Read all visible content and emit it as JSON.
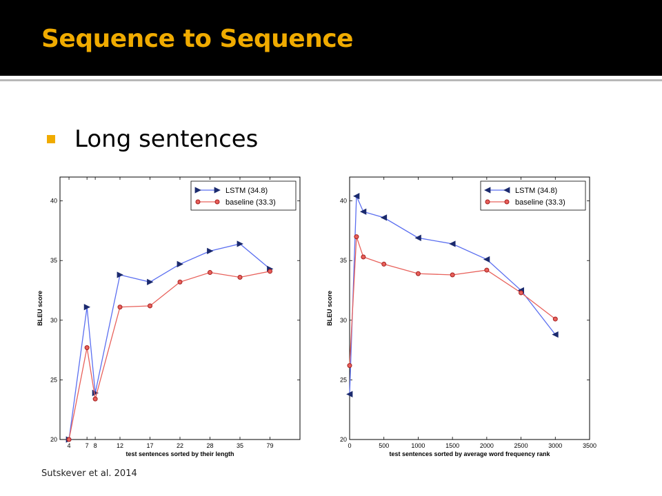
{
  "slide": {
    "title": "Sequence to Sequence",
    "bullet": "Long sentences",
    "citation": "Sutskever et al. 2014"
  },
  "colors": {
    "header_bg": "#000000",
    "title": "#f0ab00",
    "bullet": "#f0ab00",
    "lstm": "#5a6ef0",
    "lstm_marker": "#1b2a6e",
    "baseline": "#e8605a",
    "baseline_marker": "#a31e1e"
  },
  "chart_data": [
    {
      "type": "line",
      "xlabel": "test sentences sorted by their length",
      "ylabel": "BLEU score",
      "x_tick_labels": [
        "4",
        "7",
        "8",
        "12",
        "17",
        "22",
        "28",
        "35",
        "79"
      ],
      "y_ticks": [
        20,
        25,
        30,
        35,
        40
      ],
      "ylim": [
        20,
        42
      ],
      "legend_position": "top-right",
      "grid": false,
      "series": [
        {
          "name": "LSTM  (34.8)",
          "marker": "triangle-right",
          "x": [
            4,
            7,
            8,
            12,
            17,
            22,
            28,
            35,
            79
          ],
          "y": [
            20.0,
            31.1,
            23.9,
            33.8,
            33.2,
            34.7,
            35.8,
            36.4,
            34.3
          ]
        },
        {
          "name": "baseline (33.3)",
          "marker": "circle",
          "x": [
            4,
            7,
            8,
            12,
            17,
            22,
            28,
            35,
            79
          ],
          "y": [
            20.0,
            27.7,
            23.4,
            31.1,
            31.2,
            33.2,
            34.0,
            33.6,
            34.1
          ]
        }
      ]
    },
    {
      "type": "line",
      "xlabel": "test sentences sorted by average word frequency rank",
      "ylabel": "BLEU score",
      "x_ticks": [
        0,
        500,
        1000,
        1500,
        2000,
        2500,
        3000,
        3500
      ],
      "y_ticks": [
        20,
        25,
        30,
        35,
        40
      ],
      "xlim": [
        0,
        3500
      ],
      "ylim": [
        20,
        42
      ],
      "legend_position": "top-right",
      "grid": false,
      "series": [
        {
          "name": "LSTM  (34.8)",
          "marker": "triangle-left",
          "x": [
            0,
            100,
            200,
            500,
            1000,
            1500,
            2000,
            2500,
            3000
          ],
          "y": [
            23.8,
            40.4,
            39.1,
            38.6,
            36.9,
            36.4,
            35.1,
            32.5,
            28.8
          ]
        },
        {
          "name": "baseline (33.3)",
          "marker": "circle",
          "x": [
            0,
            100,
            200,
            500,
            1000,
            1500,
            2000,
            2500,
            3000
          ],
          "y": [
            26.2,
            37.0,
            35.3,
            34.7,
            33.9,
            33.8,
            34.2,
            32.3,
            30.1
          ]
        }
      ]
    }
  ]
}
